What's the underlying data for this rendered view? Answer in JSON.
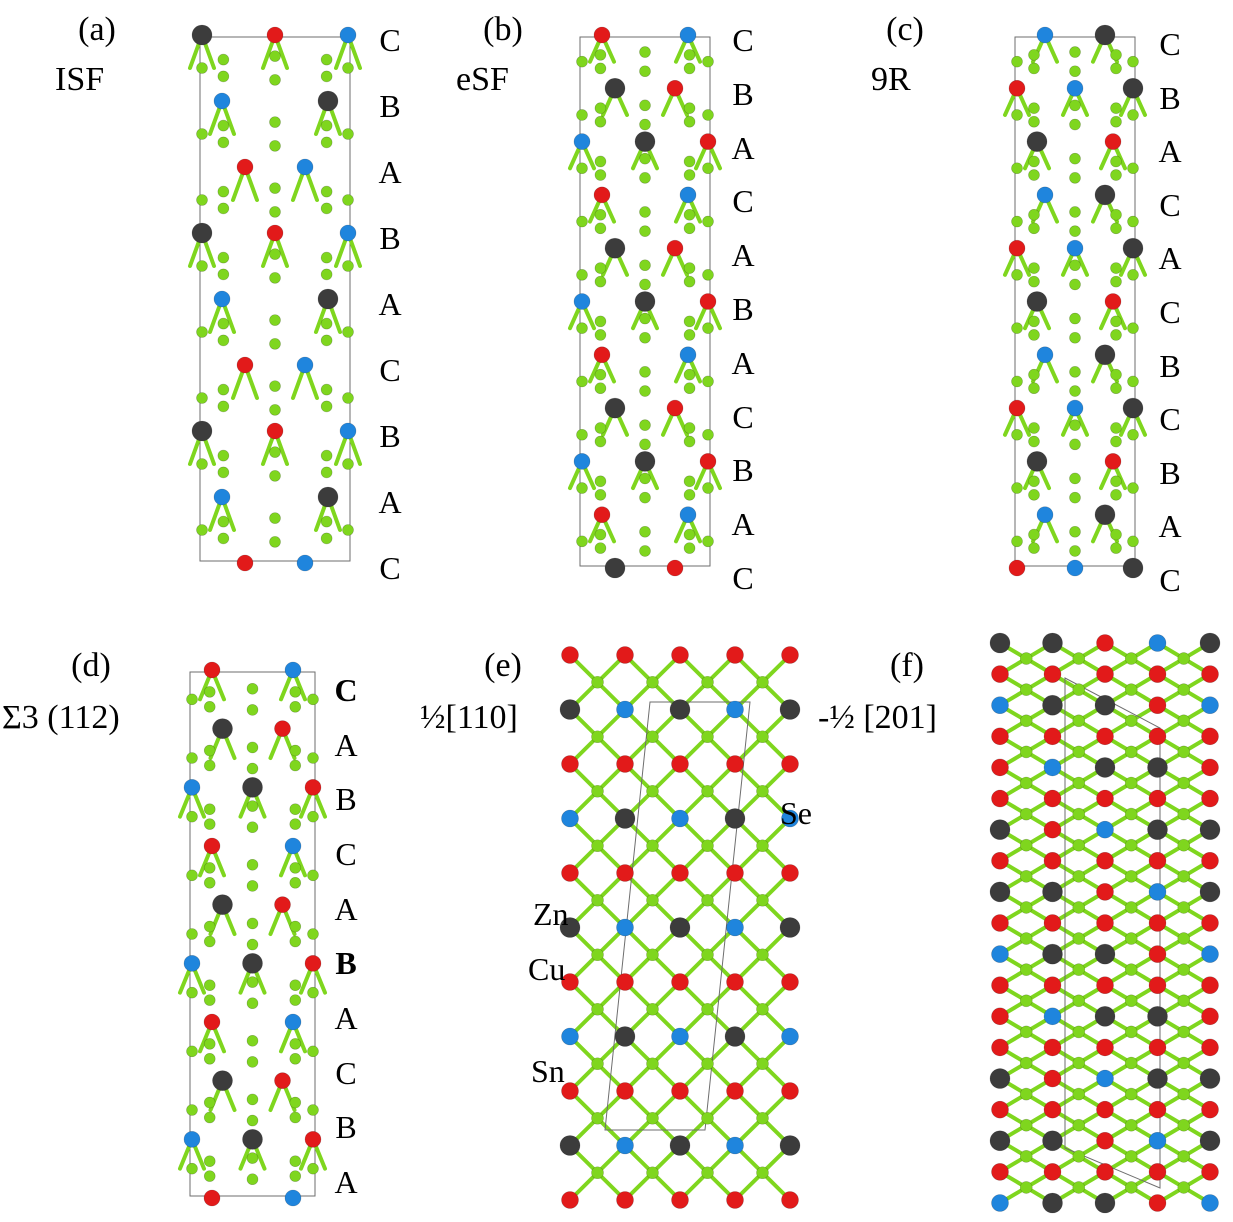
{
  "colors": {
    "Se": "#7fd61e",
    "Cu": "#e21a1a",
    "Zn": "#1f85dd",
    "Sn": "#3c3c3c",
    "cell": "#6e6e6e"
  },
  "panels": [
    {
      "id": "a",
      "tag": "(a)",
      "subtitle": "ISF",
      "layers": [
        "C",
        "B",
        "A",
        "B",
        "A",
        "C",
        "B",
        "A",
        "C"
      ],
      "bold": []
    },
    {
      "id": "b",
      "tag": "(b)",
      "subtitle": "eSF",
      "layers": [
        "C",
        "B",
        "A",
        "C",
        "A",
        "B",
        "A",
        "C",
        "B",
        "A",
        "C"
      ],
      "bold": []
    },
    {
      "id": "c",
      "tag": "(c)",
      "subtitle": "9R",
      "layers": [
        "C",
        "B",
        "A",
        "C",
        "A",
        "C",
        "B",
        "C",
        "B",
        "A",
        "C"
      ],
      "bold": []
    },
    {
      "id": "d",
      "tag": "(d)",
      "subtitle": "Σ3 (112)",
      "layers": [
        "C",
        "A",
        "B",
        "C",
        "A",
        "B",
        "A",
        "C",
        "B",
        "A"
      ],
      "bold": [
        0,
        5
      ]
    },
    {
      "id": "e",
      "tag": "(e)",
      "subtitle": "½[110]",
      "layers": [],
      "bold": []
    },
    {
      "id": "f",
      "tag": "(f)",
      "subtitle": "-½ [201]",
      "layers": [],
      "bold": []
    }
  ],
  "element_labels": {
    "Se": "Se",
    "Zn": "Zn",
    "Cu": "Cu",
    "Sn": "Sn"
  }
}
